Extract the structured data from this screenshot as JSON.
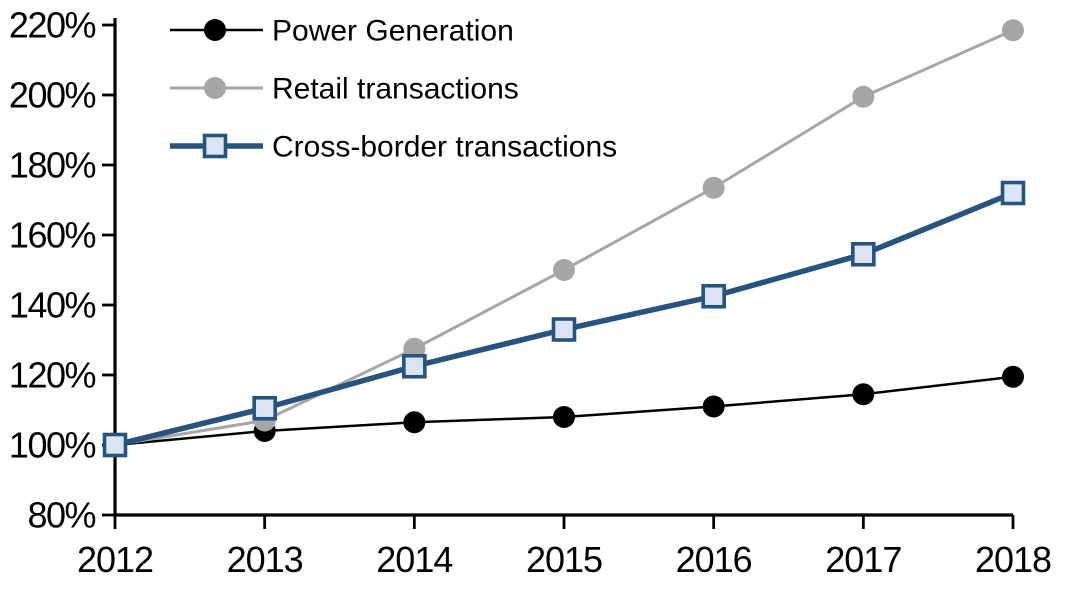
{
  "chart_data": {
    "type": "line",
    "title": "",
    "xlabel": "",
    "ylabel": "",
    "x": [
      2012,
      2013,
      2014,
      2015,
      2016,
      2017,
      2018
    ],
    "x_tick_labels": [
      "2012",
      "2013",
      "2014",
      "2015",
      "2016",
      "2017",
      "2018"
    ],
    "ylim": [
      80,
      220
    ],
    "y_tick_values": [
      80,
      100,
      120,
      140,
      160,
      180,
      200,
      220
    ],
    "y_tick_labels": [
      "80%",
      "100%",
      "120%",
      "140%",
      "160%",
      "180%",
      "200%",
      "220%"
    ],
    "grid": false,
    "legend_position": "top-left",
    "series": [
      {
        "name": "Power Generation",
        "values": [
          100,
          104,
          106.5,
          108,
          111,
          114.5,
          119.5
        ],
        "color": "#000000",
        "marker": "circle",
        "marker_fill": "#000000",
        "line_width": 2.5
      },
      {
        "name": "Retail transactions",
        "values": [
          100,
          107,
          127.5,
          150,
          173.5,
          199.5,
          218.5
        ],
        "color": "#a6a6a6",
        "marker": "circle",
        "marker_fill": "#a6a6a6",
        "line_width": 3
      },
      {
        "name": "Cross-border transactions",
        "values": [
          100,
          110.5,
          122.5,
          133,
          142.5,
          154.5,
          172
        ],
        "color": "#26547e",
        "marker": "square",
        "marker_fill": "#dbe5f1",
        "marker_border": "#26547e",
        "line_width": 5.5
      }
    ],
    "colors": {
      "axis": "#000000",
      "background": "#ffffff",
      "text": "#000000"
    }
  }
}
